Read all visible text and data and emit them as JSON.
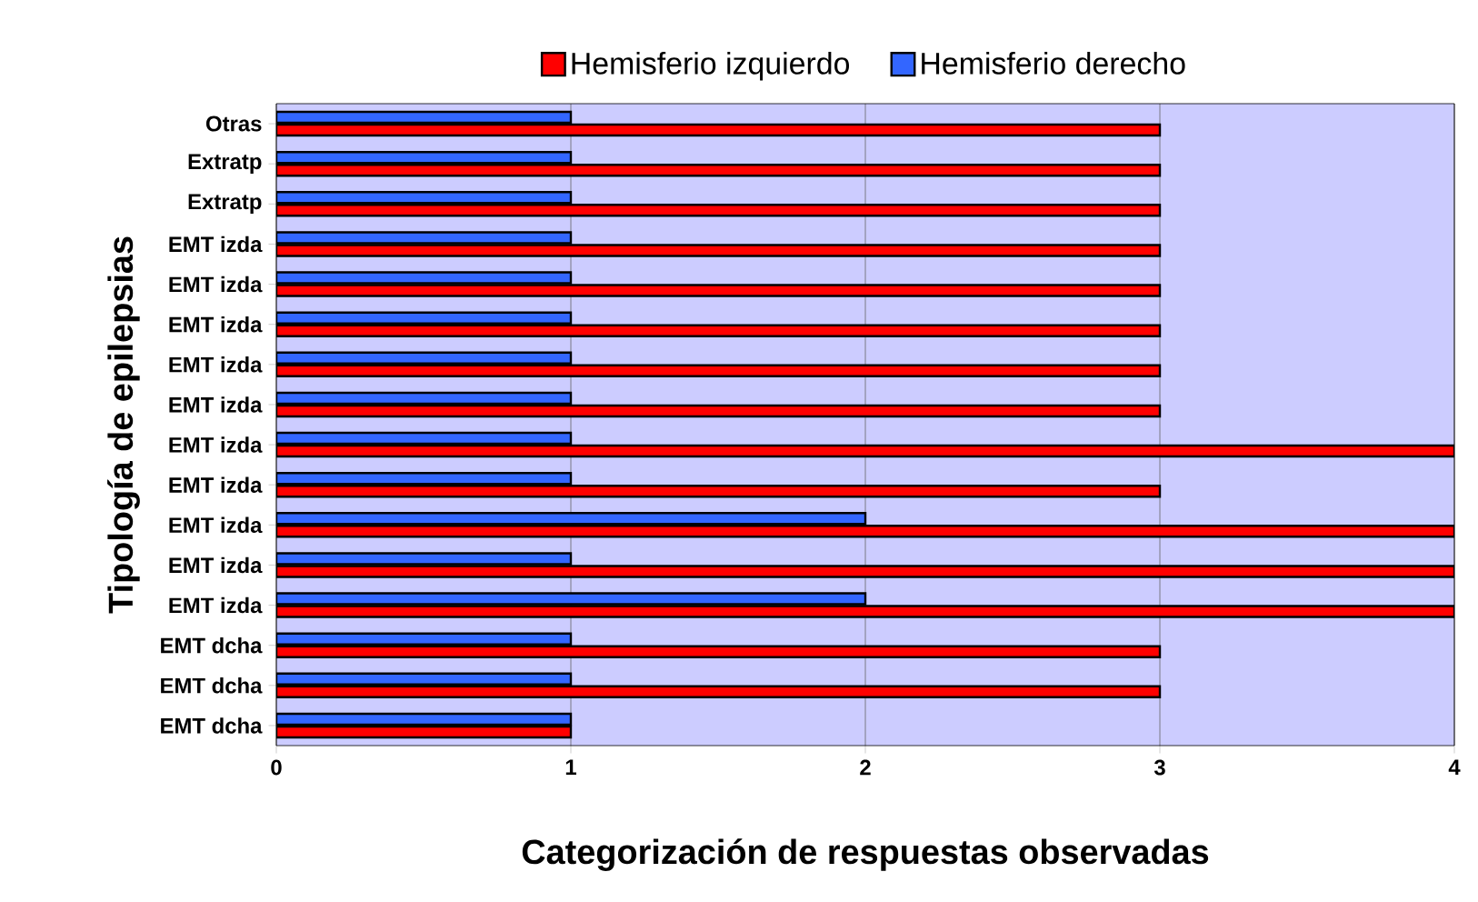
{
  "chart_data": {
    "type": "bar",
    "orientation": "horizontal",
    "xlabel": "Categorización de respuestas observadas",
    "ylabel": "Tipología de epilepsias",
    "categories": [
      "Otras",
      "Extratp",
      "Extratp",
      "EMT izda",
      "EMT izda",
      "EMT izda",
      "EMT izda",
      "EMT izda",
      "EMT izda",
      "EMT izda",
      "EMT izda",
      "EMT izda",
      "EMT izda",
      "EMT dcha",
      "EMT dcha",
      "EMT dcha"
    ],
    "series": [
      {
        "name": "Hemisferio izquierdo",
        "color": "#ff0000",
        "values": [
          3,
          3,
          3,
          3,
          3,
          3,
          3,
          3,
          4,
          3,
          4,
          4,
          4,
          3,
          3,
          1
        ]
      },
      {
        "name": "Hemisferio derecho",
        "color": "#3366ff",
        "values": [
          1,
          1,
          1,
          1,
          1,
          1,
          1,
          1,
          1,
          1,
          2,
          1,
          2,
          1,
          1,
          1
        ]
      }
    ],
    "xlim": [
      0,
      4
    ],
    "xticks": [
      0,
      1,
      2,
      3,
      4
    ],
    "grid": "x",
    "legend": "top"
  }
}
